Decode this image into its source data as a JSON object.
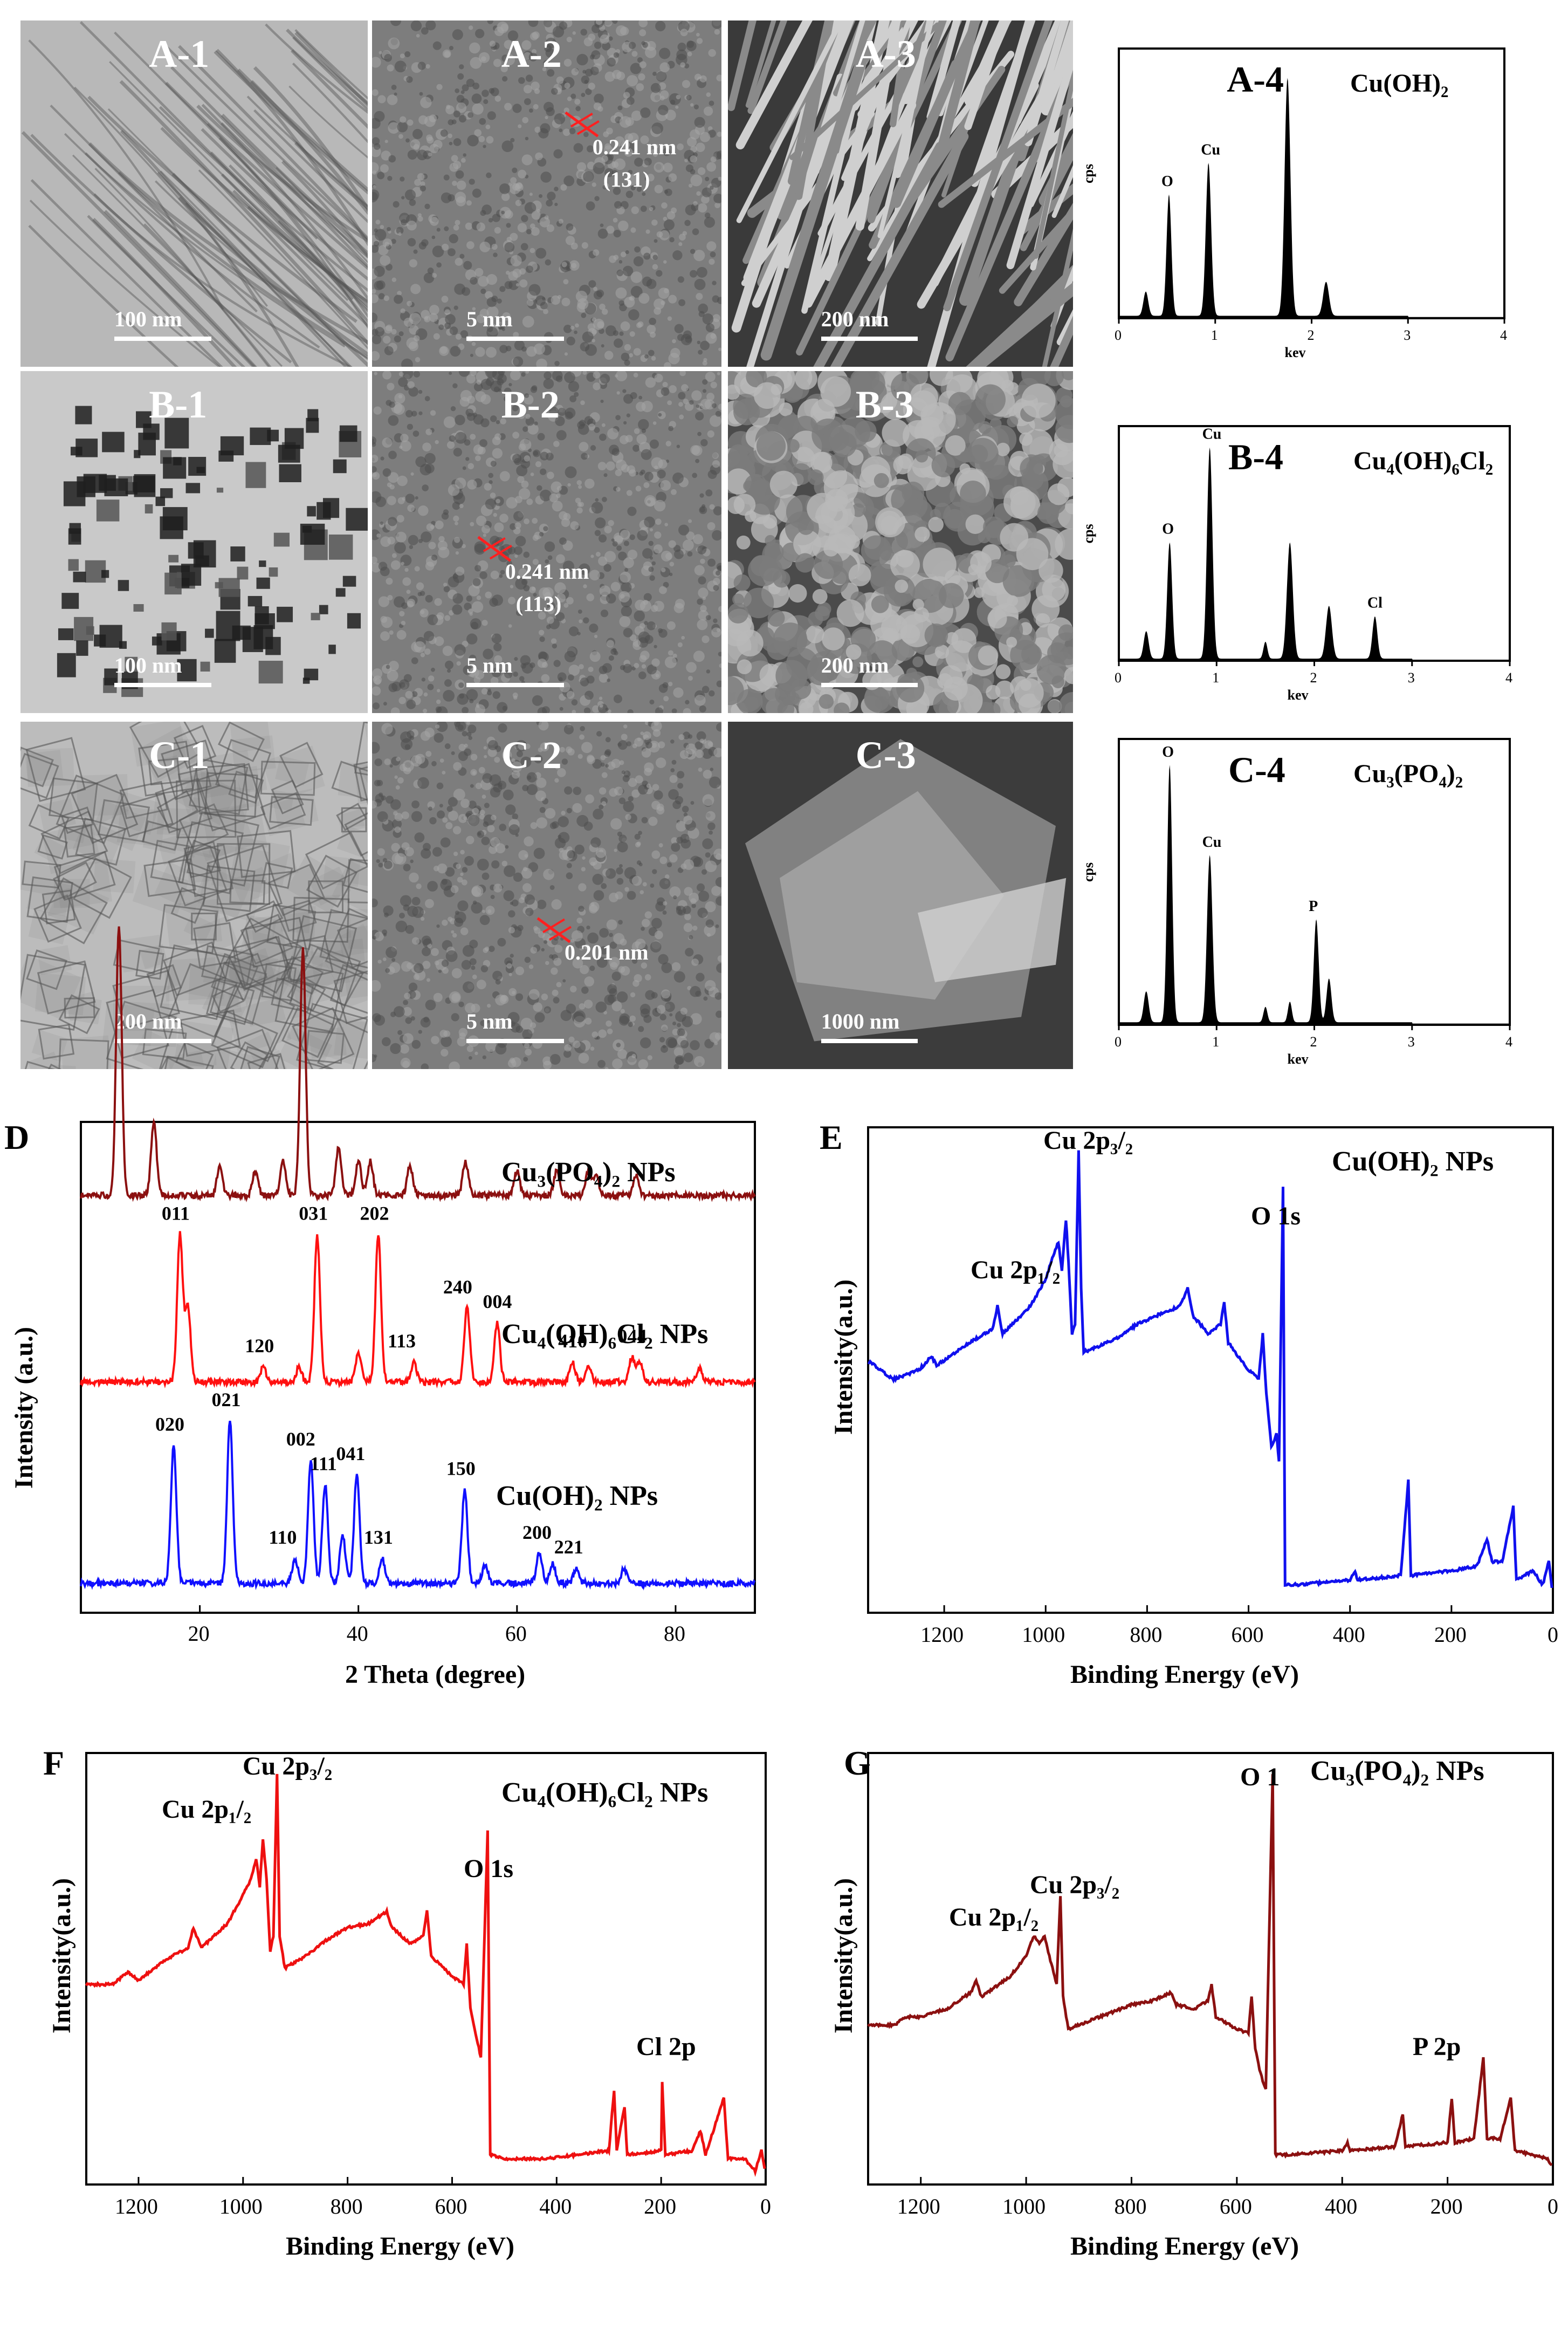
{
  "micrographs": [
    {
      "id": "A-1",
      "scale": "100 nm",
      "style": "fibers"
    },
    {
      "id": "A-2",
      "scale": "5 nm",
      "spacing": "0.241 nm",
      "plane": "(131)",
      "style": "hrtem"
    },
    {
      "id": "A-3",
      "scale": "200 nm",
      "style": "rods"
    },
    {
      "id": "B-1",
      "scale": "100 nm",
      "style": "particles"
    },
    {
      "id": "B-2",
      "scale": "5 nm",
      "spacing": "0.241 nm",
      "plane": "(113)",
      "style": "hrtem"
    },
    {
      "id": "B-3",
      "scale": "200 nm",
      "style": "grains"
    },
    {
      "id": "C-1",
      "scale": "200 nm",
      "style": "plates"
    },
    {
      "id": "C-2",
      "scale": "5 nm",
      "spacing": "0.201 nm",
      "style": "hrtem"
    },
    {
      "id": "C-3",
      "scale": "1000 nm",
      "style": "sheets"
    }
  ],
  "eds": [
    {
      "id": "A-4",
      "compound": "Cu(OH)₂",
      "xlabel": "kev",
      "ylabel": "cps",
      "xticks": [
        "0",
        "1",
        "2",
        "3",
        "4"
      ],
      "peaks": [
        {
          "x": 0.28,
          "h": 0.1,
          "w": 0.05
        },
        {
          "x": 0.52,
          "h": 0.5,
          "w": 0.05,
          "label": "O"
        },
        {
          "x": 0.93,
          "h": 0.63,
          "w": 0.055,
          "label": "Cu"
        },
        {
          "x": 1.75,
          "h": 0.98,
          "w": 0.06
        },
        {
          "x": 2.15,
          "h": 0.14,
          "w": 0.06
        }
      ]
    },
    {
      "id": "B-4",
      "compound": "Cu₄(OH)₆Cl₂",
      "xlabel": "kev",
      "ylabel": "cps",
      "xticks": [
        "0",
        "1",
        "2",
        "3",
        "4"
      ],
      "peaks": [
        {
          "x": 0.28,
          "h": 0.13,
          "w": 0.05
        },
        {
          "x": 0.52,
          "h": 0.55,
          "w": 0.05,
          "label": "O"
        },
        {
          "x": 0.93,
          "h": 1.0,
          "w": 0.055,
          "label": "Cu"
        },
        {
          "x": 1.5,
          "h": 0.08,
          "w": 0.04
        },
        {
          "x": 1.75,
          "h": 0.55,
          "w": 0.06
        },
        {
          "x": 2.15,
          "h": 0.25,
          "w": 0.06
        },
        {
          "x": 2.62,
          "h": 0.2,
          "w": 0.05,
          "label": "Cl"
        }
      ]
    },
    {
      "id": "C-4",
      "compound": "Cu₃(PO₄)₂",
      "xlabel": "kev",
      "ylabel": "cps",
      "xticks": [
        "0",
        "1",
        "2",
        "3",
        "4"
      ],
      "peaks": [
        {
          "x": 0.28,
          "h": 0.12,
          "w": 0.05
        },
        {
          "x": 0.52,
          "h": 1.0,
          "w": 0.05,
          "label": "O"
        },
        {
          "x": 0.93,
          "h": 0.65,
          "w": 0.055,
          "label": "Cu"
        },
        {
          "x": 1.5,
          "h": 0.06,
          "w": 0.04
        },
        {
          "x": 1.75,
          "h": 0.08,
          "w": 0.04
        },
        {
          "x": 2.02,
          "h": 0.4,
          "w": 0.05,
          "label": "P"
        },
        {
          "x": 2.15,
          "h": 0.17,
          "w": 0.05
        }
      ]
    }
  ],
  "chart_data": [
    {
      "id": "D",
      "type": "line",
      "xlabel": "2 Theta (degree)",
      "ylabel": "Intensity (a.u.)",
      "xlim": [
        5,
        90
      ],
      "xticks": [
        "20",
        "40",
        "60",
        "80"
      ],
      "series": [
        {
          "name": "Cu₃(PO₄)₂ NPs",
          "color": "#8b1010",
          "baseline": 0.85,
          "peaks": [
            [
              9.8,
              0.55
            ],
            [
              14.2,
              0.15
            ],
            [
              22.5,
              0.06
            ],
            [
              27,
              0.05
            ],
            [
              30.5,
              0.07
            ],
            [
              33,
              0.5
            ],
            [
              37.5,
              0.1
            ],
            [
              40,
              0.07
            ],
            [
              41.5,
              0.07
            ],
            [
              46.5,
              0.06
            ],
            [
              53.5,
              0.07
            ],
            [
              60,
              0.05
            ],
            [
              65,
              0.05
            ],
            [
              69,
              0.05
            ],
            [
              70,
              0.04
            ],
            [
              75,
              0.04
            ]
          ]
        },
        {
          "name": "Cu₄(OH)₆Cl₂ NPs",
          "color": "#ff1010",
          "baseline": 0.47,
          "peaks": [
            [
              17.5,
              0.3
            ],
            [
              18.5,
              0.15
            ],
            [
              28,
              0.03
            ],
            [
              32.5,
              0.03
            ],
            [
              34.8,
              0.3
            ],
            [
              40,
              0.06
            ],
            [
              42.5,
              0.3
            ],
            [
              47,
              0.04
            ],
            [
              53.7,
              0.15
            ],
            [
              57.5,
              0.12
            ],
            [
              67,
              0.04
            ],
            [
              69,
              0.03
            ],
            [
              74.5,
              0.05
            ],
            [
              75.5,
              0.04
            ],
            [
              83,
              0.03
            ]
          ],
          "labels": [
            [
              17.5,
              "011"
            ],
            [
              28,
              "120"
            ],
            [
              34.8,
              "031"
            ],
            [
              42.5,
              "202"
            ],
            [
              46,
              "113"
            ],
            [
              53,
              "240"
            ],
            [
              58,
              "004"
            ],
            [
              67.5,
              "410"
            ],
            [
              75,
              "044"
            ]
          ]
        },
        {
          "name": "Cu(OH)₂ NPs",
          "color": "#1010ff",
          "baseline": 0.06,
          "peaks": [
            [
              16.7,
              0.28
            ],
            [
              23.8,
              0.33
            ],
            [
              32,
              0.05
            ],
            [
              34,
              0.25
            ],
            [
              35.8,
              0.2
            ],
            [
              38,
              0.1
            ],
            [
              39.8,
              0.22
            ],
            [
              43,
              0.05
            ],
            [
              53.4,
              0.19
            ],
            [
              56,
              0.04
            ],
            [
              62.8,
              0.06
            ],
            [
              64.5,
              0.04
            ],
            [
              67.5,
              0.03
            ],
            [
              73.5,
              0.03
            ]
          ],
          "labels": [
            [
              16.7,
              "020"
            ],
            [
              23.8,
              "021"
            ],
            [
              31,
              "110"
            ],
            [
              33.2,
              "002"
            ],
            [
              36.2,
              "111"
            ],
            [
              39.5,
              "041"
            ],
            [
              43,
              "131"
            ],
            [
              53.4,
              "150"
            ],
            [
              63,
              "200"
            ],
            [
              67,
              "221"
            ]
          ]
        }
      ]
    },
    {
      "id": "E",
      "type": "line",
      "title": "Cu(OH)₂ NPs",
      "xlabel": "Binding Energy  (eV)",
      "ylabel": "Intensity(a.u.)",
      "xlim": [
        1350,
        0
      ],
      "xticks": [
        "1200",
        "1000",
        "800",
        "600",
        "400",
        "200",
        "0"
      ],
      "color": "#1010ee",
      "annotations": [
        [
          "Cu 2p₁/₂",
          1200
        ],
        [
          "Cu 2p₃/₂",
          1080
        ],
        [
          "O 1s",
          570
        ]
      ]
    },
    {
      "id": "F",
      "type": "line",
      "title": "Cu₄(OH)₆Cl₂ NPs",
      "xlabel": "Binding Energy (eV)",
      "ylabel": "Intensity(a.u.)",
      "xlim": [
        1300,
        0
      ],
      "xticks": [
        "1200",
        "1000",
        "800",
        "600",
        "400",
        "200",
        "0"
      ],
      "color": "#ee1010",
      "annotations": [
        [
          "Cu 2p₁/₂",
          1220
        ],
        [
          "Cu 2p₃/₂",
          1070
        ],
        [
          "O 1s",
          550
        ],
        [
          "Cl 2p",
          220
        ]
      ]
    },
    {
      "id": "G",
      "type": "line",
      "title": "Cu₃(PO₄)₂ NPs",
      "xlabel": "Binding Energy (eV)",
      "ylabel": "Intensity(a.u.)",
      "xlim": [
        1300,
        0
      ],
      "xticks": [
        "1200",
        "1000",
        "800",
        "600",
        "400",
        "200",
        "0"
      ],
      "color": "#8b1010",
      "annotations": [
        [
          "Cu 2p₁/₂",
          1180
        ],
        [
          "Cu 2p₃/₂",
          1050
        ],
        [
          "O 1",
          560
        ],
        [
          "P 2p",
          160
        ]
      ]
    }
  ],
  "xps_shape": {
    "Cu(OH)₂": [
      [
        1350,
        0.54
      ],
      [
        1300,
        0.5
      ],
      [
        1250,
        0.52
      ],
      [
        1225,
        0.55
      ],
      [
        1215,
        0.53
      ],
      [
        1150,
        0.58
      ],
      [
        1105,
        0.61
      ],
      [
        1095,
        0.66
      ],
      [
        1085,
        0.6
      ],
      [
        1030,
        0.66
      ],
      [
        1000,
        0.72
      ],
      [
        985,
        0.77
      ],
      [
        975,
        0.8
      ],
      [
        968,
        0.74
      ],
      [
        960,
        0.85
      ],
      [
        955,
        0.76
      ],
      [
        948,
        0.6
      ],
      [
        942,
        0.62
      ],
      [
        935,
        1.0
      ],
      [
        930,
        0.7
      ],
      [
        925,
        0.56
      ],
      [
        900,
        0.57
      ],
      [
        860,
        0.59
      ],
      [
        820,
        0.62
      ],
      [
        780,
        0.64
      ],
      [
        735,
        0.66
      ],
      [
        720,
        0.7
      ],
      [
        710,
        0.64
      ],
      [
        680,
        0.6
      ],
      [
        655,
        0.62
      ],
      [
        648,
        0.67
      ],
      [
        640,
        0.58
      ],
      [
        600,
        0.52
      ],
      [
        580,
        0.5
      ],
      [
        572,
        0.6
      ],
      [
        565,
        0.47
      ],
      [
        555,
        0.35
      ],
      [
        545,
        0.38
      ],
      [
        540,
        0.32
      ],
      [
        532,
        0.92
      ],
      [
        528,
        0.05
      ],
      [
        500,
        0.05
      ],
      [
        400,
        0.06
      ],
      [
        390,
        0.08
      ],
      [
        385,
        0.06
      ],
      [
        300,
        0.07
      ],
      [
        285,
        0.28
      ],
      [
        280,
        0.07
      ],
      [
        200,
        0.08
      ],
      [
        150,
        0.09
      ],
      [
        130,
        0.15
      ],
      [
        120,
        0.1
      ],
      [
        100,
        0.1
      ],
      [
        78,
        0.22
      ],
      [
        72,
        0.06
      ],
      [
        40,
        0.08
      ],
      [
        20,
        0.05
      ],
      [
        8,
        0.1
      ],
      [
        0,
        0.02
      ]
    ],
    "Cu₄(OH)₆Cl₂": [
      [
        1300,
        0.48
      ],
      [
        1250,
        0.48
      ],
      [
        1220,
        0.51
      ],
      [
        1200,
        0.49
      ],
      [
        1150,
        0.54
      ],
      [
        1105,
        0.57
      ],
      [
        1095,
        0.62
      ],
      [
        1080,
        0.57
      ],
      [
        1030,
        0.63
      ],
      [
        1000,
        0.7
      ],
      [
        985,
        0.74
      ],
      [
        975,
        0.79
      ],
      [
        968,
        0.72
      ],
      [
        962,
        0.84
      ],
      [
        955,
        0.74
      ],
      [
        948,
        0.56
      ],
      [
        942,
        0.6
      ],
      [
        935,
        1.0
      ],
      [
        930,
        0.6
      ],
      [
        920,
        0.52
      ],
      [
        880,
        0.55
      ],
      [
        840,
        0.59
      ],
      [
        800,
        0.62
      ],
      [
        760,
        0.63
      ],
      [
        725,
        0.66
      ],
      [
        715,
        0.62
      ],
      [
        680,
        0.58
      ],
      [
        655,
        0.6
      ],
      [
        648,
        0.66
      ],
      [
        640,
        0.55
      ],
      [
        600,
        0.5
      ],
      [
        578,
        0.48
      ],
      [
        572,
        0.58
      ],
      [
        565,
        0.42
      ],
      [
        555,
        0.36
      ],
      [
        545,
        0.3
      ],
      [
        532,
        0.86
      ],
      [
        527,
        0.06
      ],
      [
        500,
        0.05
      ],
      [
        420,
        0.05
      ],
      [
        300,
        0.07
      ],
      [
        290,
        0.22
      ],
      [
        285,
        0.07
      ],
      [
        270,
        0.18
      ],
      [
        265,
        0.06
      ],
      [
        200,
        0.07
      ],
      [
        198,
        0.24
      ],
      [
        192,
        0.06
      ],
      [
        140,
        0.07
      ],
      [
        125,
        0.12
      ],
      [
        115,
        0.06
      ],
      [
        80,
        0.2
      ],
      [
        72,
        0.05
      ],
      [
        40,
        0.05
      ],
      [
        20,
        0.02
      ],
      [
        8,
        0.07
      ],
      [
        0,
        0.01
      ]
    ],
    "Cu₃(PO₄)₂": [
      [
        1300,
        0.38
      ],
      [
        1250,
        0.38
      ],
      [
        1230,
        0.4
      ],
      [
        1200,
        0.4
      ],
      [
        1150,
        0.42
      ],
      [
        1105,
        0.46
      ],
      [
        1095,
        0.49
      ],
      [
        1085,
        0.45
      ],
      [
        1030,
        0.5
      ],
      [
        1000,
        0.55
      ],
      [
        985,
        0.6
      ],
      [
        975,
        0.58
      ],
      [
        965,
        0.6
      ],
      [
        958,
        0.56
      ],
      [
        950,
        0.52
      ],
      [
        942,
        0.48
      ],
      [
        935,
        0.7
      ],
      [
        930,
        0.45
      ],
      [
        920,
        0.37
      ],
      [
        880,
        0.39
      ],
      [
        840,
        0.41
      ],
      [
        800,
        0.43
      ],
      [
        760,
        0.44
      ],
      [
        725,
        0.46
      ],
      [
        715,
        0.43
      ],
      [
        680,
        0.42
      ],
      [
        655,
        0.44
      ],
      [
        648,
        0.48
      ],
      [
        640,
        0.4
      ],
      [
        600,
        0.37
      ],
      [
        578,
        0.36
      ],
      [
        572,
        0.45
      ],
      [
        565,
        0.32
      ],
      [
        555,
        0.26
      ],
      [
        545,
        0.22
      ],
      [
        532,
        1.0
      ],
      [
        527,
        0.06
      ],
      [
        500,
        0.06
      ],
      [
        400,
        0.07
      ],
      [
        390,
        0.09
      ],
      [
        385,
        0.07
      ],
      [
        300,
        0.08
      ],
      [
        285,
        0.16
      ],
      [
        280,
        0.08
      ],
      [
        200,
        0.09
      ],
      [
        192,
        0.2
      ],
      [
        186,
        0.09
      ],
      [
        150,
        0.1
      ],
      [
        132,
        0.3
      ],
      [
        125,
        0.1
      ],
      [
        100,
        0.1
      ],
      [
        80,
        0.2
      ],
      [
        72,
        0.07
      ],
      [
        40,
        0.06
      ],
      [
        10,
        0.05
      ],
      [
        0,
        0.03
      ]
    ]
  }
}
